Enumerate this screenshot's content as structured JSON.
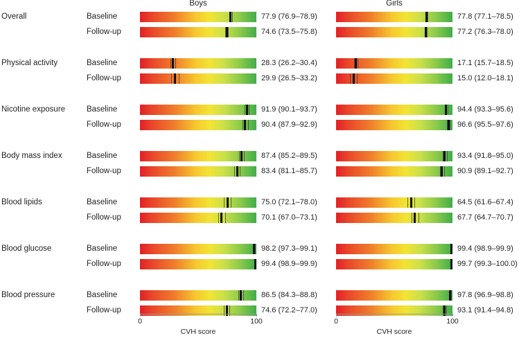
{
  "chart_data": {
    "type": "bar",
    "description_style": "point estimate with 95% CI over gradient scale",
    "panels": [
      "Boys",
      "Girls"
    ],
    "xlabel": "CVH score",
    "xlim": [
      0,
      100
    ],
    "xticks": [
      "0",
      "100"
    ],
    "metrics": [
      {
        "name": "Overall",
        "rows": [
          {
            "phase": "Baseline",
            "boys": {
              "value": 77.9,
              "lo": 76.9,
              "hi": 78.9,
              "label": "77.9 (76.9–78.9)"
            },
            "girls": {
              "value": 77.8,
              "lo": 77.1,
              "hi": 78.5,
              "label": "77.8 (77.1–78.5)"
            }
          },
          {
            "phase": "Follow-up",
            "boys": {
              "value": 74.6,
              "lo": 73.5,
              "hi": 75.8,
              "label": "74.6 (73.5–75.8)"
            },
            "girls": {
              "value": 77.2,
              "lo": 76.3,
              "hi": 78.0,
              "label": "77.2 (76.3–78.0)"
            }
          }
        ]
      },
      {
        "name": "Physical activity",
        "rows": [
          {
            "phase": "Baseline",
            "boys": {
              "value": 28.3,
              "lo": 26.2,
              "hi": 30.4,
              "label": "28.3 (26.2–30.4)"
            },
            "girls": {
              "value": 17.1,
              "lo": 15.7,
              "hi": 18.5,
              "label": "17.1 (15.7–18.5)"
            }
          },
          {
            "phase": "Follow-up",
            "boys": {
              "value": 29.9,
              "lo": 26.5,
              "hi": 33.2,
              "label": "29.9 (26.5–33.2)"
            },
            "girls": {
              "value": 15.0,
              "lo": 12.0,
              "hi": 18.1,
              "label": "15.0 (12.0–18.1)"
            }
          }
        ]
      },
      {
        "name": "Nicotine exposure",
        "rows": [
          {
            "phase": "Baseline",
            "boys": {
              "value": 91.9,
              "lo": 90.1,
              "hi": 93.7,
              "label": "91.9 (90.1–93.7)"
            },
            "girls": {
              "value": 94.4,
              "lo": 93.3,
              "hi": 95.6,
              "label": "94.4 (93.3–95.6)"
            }
          },
          {
            "phase": "Follow-up",
            "boys": {
              "value": 90.4,
              "lo": 87.9,
              "hi": 92.9,
              "label": "90.4 (87.9–92.9)"
            },
            "girls": {
              "value": 96.6,
              "lo": 95.5,
              "hi": 97.6,
              "label": "96.6 (95.5–97.6)"
            }
          }
        ]
      },
      {
        "name": "Body mass index",
        "rows": [
          {
            "phase": "Baseline",
            "boys": {
              "value": 87.4,
              "lo": 85.2,
              "hi": 89.5,
              "label": "87.4 (85.2–89.5)"
            },
            "girls": {
              "value": 93.4,
              "lo": 91.8,
              "hi": 95.0,
              "label": "93.4 (91.8–95.0)"
            }
          },
          {
            "phase": "Follow-up",
            "boys": {
              "value": 83.4,
              "lo": 81.1,
              "hi": 85.7,
              "label": "83.4 (81.1–85.7)"
            },
            "girls": {
              "value": 90.9,
              "lo": 89.1,
              "hi": 92.7,
              "label": "90.9 (89.1–92.7)"
            }
          }
        ]
      },
      {
        "name": "Blood lipids",
        "rows": [
          {
            "phase": "Baseline",
            "boys": {
              "value": 75.0,
              "lo": 72.1,
              "hi": 78.0,
              "label": "75.0 (72.1–78.0)"
            },
            "girls": {
              "value": 64.5,
              "lo": 61.6,
              "hi": 67.4,
              "label": "64.5 (61.6–67.4)"
            }
          },
          {
            "phase": "Follow-up",
            "boys": {
              "value": 70.1,
              "lo": 67.0,
              "hi": 73.1,
              "label": "70.1 (67.0–73.1)"
            },
            "girls": {
              "value": 67.7,
              "lo": 64.7,
              "hi": 70.7,
              "label": "67.7 (64.7–70.7)"
            }
          }
        ]
      },
      {
        "name": "Blood glucose",
        "rows": [
          {
            "phase": "Baseline",
            "boys": {
              "value": 98.2,
              "lo": 97.3,
              "hi": 99.1,
              "label": "98.2 (97.3–99.1)"
            },
            "girls": {
              "value": 99.4,
              "lo": 98.9,
              "hi": 99.9,
              "label": "99.4 (98.9–99.9)"
            }
          },
          {
            "phase": "Follow-up",
            "boys": {
              "value": 99.4,
              "lo": 98.9,
              "hi": 99.9,
              "label": "99.4 (98.9–99.9)"
            },
            "girls": {
              "value": 99.7,
              "lo": 99.3,
              "hi": 100.0,
              "label": "99.7 (99.3–100.0)"
            }
          }
        ]
      },
      {
        "name": "Blood pressure",
        "rows": [
          {
            "phase": "Baseline",
            "boys": {
              "value": 86.5,
              "lo": 84.3,
              "hi": 88.8,
              "label": "86.5 (84.3–88.8)"
            },
            "girls": {
              "value": 97.8,
              "lo": 96.9,
              "hi": 98.8,
              "label": "97.8 (96.9–98.8)"
            }
          },
          {
            "phase": "Follow-up",
            "boys": {
              "value": 74.6,
              "lo": 72.2,
              "hi": 77.0,
              "label": "74.6 (72.2–77.0)"
            },
            "girls": {
              "value": 93.1,
              "lo": 91.4,
              "hi": 94.8,
              "label": "93.1 (91.4–94.8)"
            }
          }
        ]
      }
    ]
  }
}
